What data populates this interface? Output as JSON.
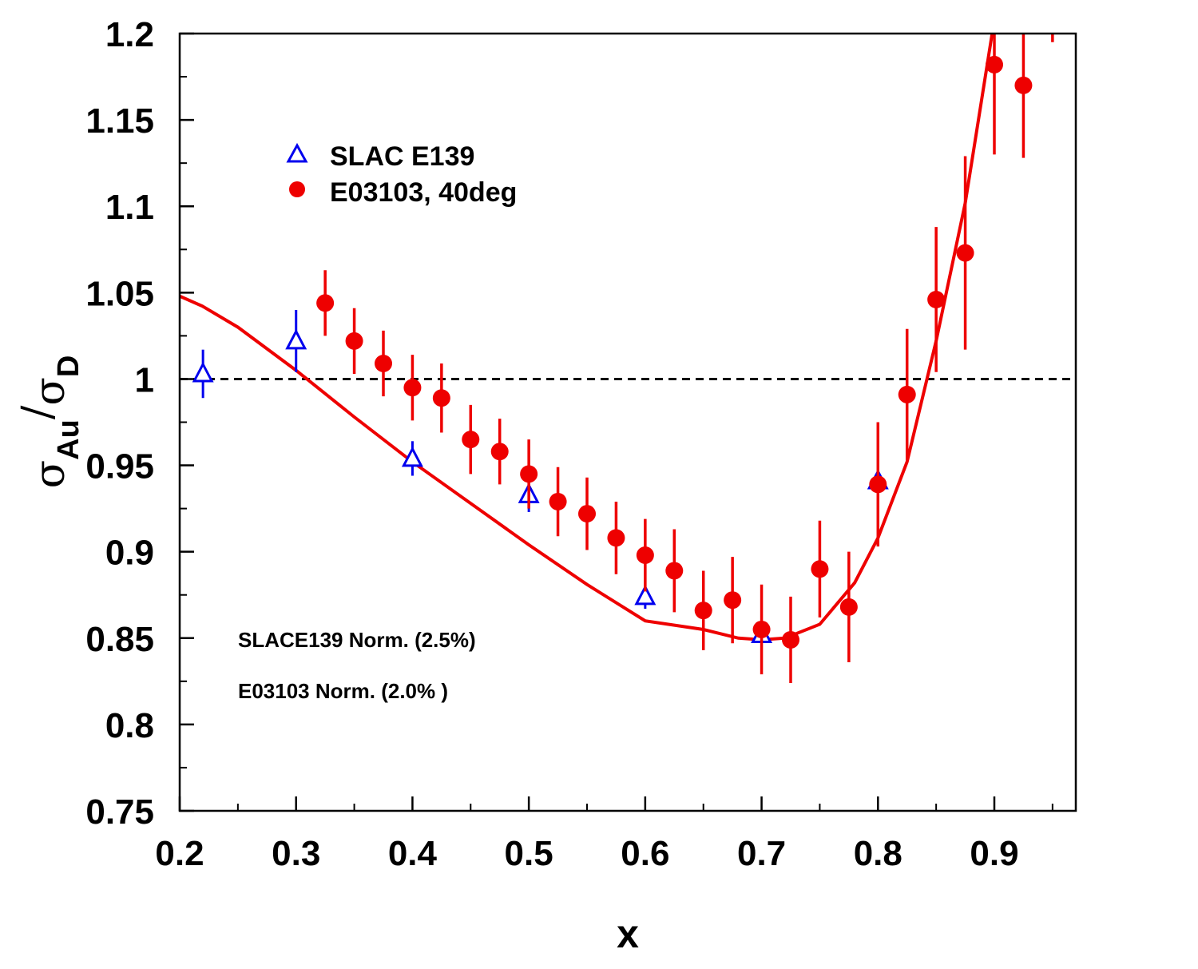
{
  "chart_data": {
    "type": "scatter",
    "xlabel": "x",
    "ylabel": {
      "sigma1": "σ",
      "sub1": "Au",
      "slash": "/",
      "sigma2": "σ",
      "sub2": "D"
    },
    "xlim": [
      0.2,
      0.97
    ],
    "ylim": [
      0.75,
      1.2
    ],
    "x_ticks": [
      "0.2",
      "0.3",
      "0.4",
      "0.5",
      "0.6",
      "0.7",
      "0.8",
      "0.9"
    ],
    "y_ticks": [
      "0.75",
      "0.8",
      "0.85",
      "0.9",
      "0.95",
      "1",
      "1.05",
      "1.1",
      "1.15",
      "1.2"
    ],
    "reference_line": {
      "y": 1.0,
      "style": "dashed",
      "color": "#000000"
    },
    "legend": {
      "placement": "top-left"
    },
    "series": [
      {
        "name": "SLAC E139",
        "marker": "open-triangle",
        "color": "#0000ee",
        "points": [
          {
            "x": 0.22,
            "y": 1.003,
            "err": 0.014
          },
          {
            "x": 0.3,
            "y": 1.022,
            "err": 0.018
          },
          {
            "x": 0.4,
            "y": 0.954,
            "err": 0.01
          },
          {
            "x": 0.5,
            "y": 0.933,
            "err": 0.01
          },
          {
            "x": 0.6,
            "y": 0.874,
            "err": 0.007
          },
          {
            "x": 0.7,
            "y": 0.852,
            "err": 0.005
          },
          {
            "x": 0.8,
            "y": 0.941,
            "err": 0.005
          }
        ]
      },
      {
        "name": "E03103, 40deg",
        "marker": "filled-circle",
        "color": "#ee0000",
        "points": [
          {
            "x": 0.325,
            "y": 1.044,
            "err": 0.019
          },
          {
            "x": 0.35,
            "y": 1.022,
            "err": 0.019
          },
          {
            "x": 0.375,
            "y": 1.009,
            "err": 0.019
          },
          {
            "x": 0.4,
            "y": 0.995,
            "err": 0.019
          },
          {
            "x": 0.425,
            "y": 0.989,
            "err": 0.02
          },
          {
            "x": 0.45,
            "y": 0.965,
            "err": 0.02
          },
          {
            "x": 0.475,
            "y": 0.958,
            "err": 0.019
          },
          {
            "x": 0.5,
            "y": 0.945,
            "err": 0.02
          },
          {
            "x": 0.525,
            "y": 0.929,
            "err": 0.02
          },
          {
            "x": 0.55,
            "y": 0.922,
            "err": 0.021
          },
          {
            "x": 0.575,
            "y": 0.908,
            "err": 0.021
          },
          {
            "x": 0.6,
            "y": 0.898,
            "err": 0.021
          },
          {
            "x": 0.625,
            "y": 0.889,
            "err": 0.024
          },
          {
            "x": 0.65,
            "y": 0.866,
            "err": 0.023
          },
          {
            "x": 0.675,
            "y": 0.872,
            "err": 0.025
          },
          {
            "x": 0.7,
            "y": 0.855,
            "err": 0.026
          },
          {
            "x": 0.725,
            "y": 0.849,
            "err": 0.025
          },
          {
            "x": 0.75,
            "y": 0.89,
            "err": 0.028
          },
          {
            "x": 0.775,
            "y": 0.868,
            "err": 0.032
          },
          {
            "x": 0.8,
            "y": 0.939,
            "err": 0.036
          },
          {
            "x": 0.825,
            "y": 0.991,
            "err": 0.038
          },
          {
            "x": 0.85,
            "y": 1.046,
            "err": 0.042
          },
          {
            "x": 0.875,
            "y": 1.073,
            "err": 0.056
          },
          {
            "x": 0.9,
            "y": 1.182,
            "err": 0.052
          },
          {
            "x": 0.925,
            "y": 1.17,
            "err": 0.042
          },
          {
            "x": 0.95,
            "y": 1.215,
            "err": 0.02
          }
        ]
      },
      {
        "name": "",
        "type": "line",
        "color": "#ee0000",
        "x": [
          0.2,
          0.22,
          0.25,
          0.3,
          0.35,
          0.4,
          0.45,
          0.5,
          0.55,
          0.6,
          0.65,
          0.68,
          0.7,
          0.72,
          0.75,
          0.78,
          0.8,
          0.825,
          0.85,
          0.875,
          0.9
        ],
        "y": [
          1.048,
          1.042,
          1.03,
          1.005,
          0.978,
          0.952,
          0.928,
          0.904,
          0.881,
          0.86,
          0.855,
          0.85,
          0.849,
          0.85,
          0.858,
          0.882,
          0.908,
          0.952,
          1.022,
          1.102,
          1.208
        ]
      }
    ],
    "annotations": [
      {
        "text": "SLACE139 Norm. (2.5%)"
      },
      {
        "text": "E03103 Norm. (2.0% )"
      }
    ]
  }
}
